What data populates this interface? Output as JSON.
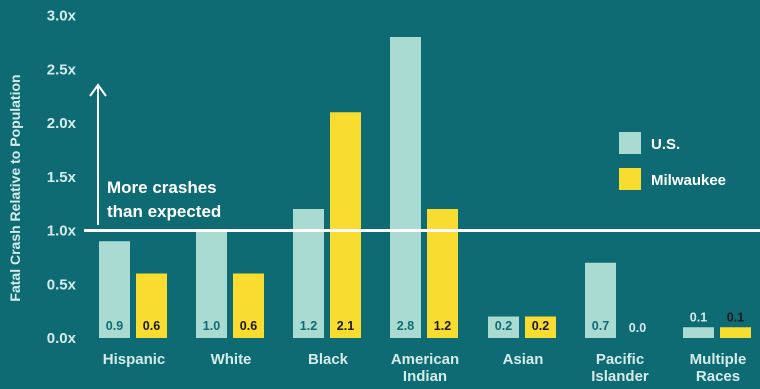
{
  "chart_data": {
    "type": "bar",
    "ylabel": "Fatal Crash Relative to Population",
    "ylim": [
      0,
      3.0
    ],
    "yticks": [
      "0.0x",
      "0.5x",
      "1.0x",
      "1.5x",
      "2.0x",
      "2.5x",
      "3.0x"
    ],
    "categories": [
      [
        "Hispanic"
      ],
      [
        "White"
      ],
      [
        "Black"
      ],
      [
        "American",
        "Indian"
      ],
      [
        "Asian"
      ],
      [
        "Pacific",
        "Islander"
      ],
      [
        "Multiple",
        "Races"
      ]
    ],
    "series": [
      {
        "name": "U.S.",
        "color": "#aadbd3",
        "values": [
          0.9,
          1.0,
          1.2,
          2.8,
          0.2,
          0.7,
          0.1
        ],
        "value_labels": [
          "0.9",
          "1.0",
          "1.2",
          "2.8",
          "0.2",
          "0.7",
          "0.1"
        ]
      },
      {
        "name": "Milwaukee",
        "color": "#f8dc30",
        "values": [
          0.6,
          0.6,
          2.1,
          1.2,
          0.2,
          0.0,
          0.1
        ],
        "value_labels": [
          "0.6",
          "0.6",
          "2.1",
          "1.2",
          "0.2",
          "0.0",
          "0.1"
        ]
      }
    ],
    "reference_line": {
      "value": 1.0,
      "color": "#ffffff"
    },
    "annotation": [
      "More crashes",
      "than expected"
    ],
    "legend_position": "right"
  }
}
